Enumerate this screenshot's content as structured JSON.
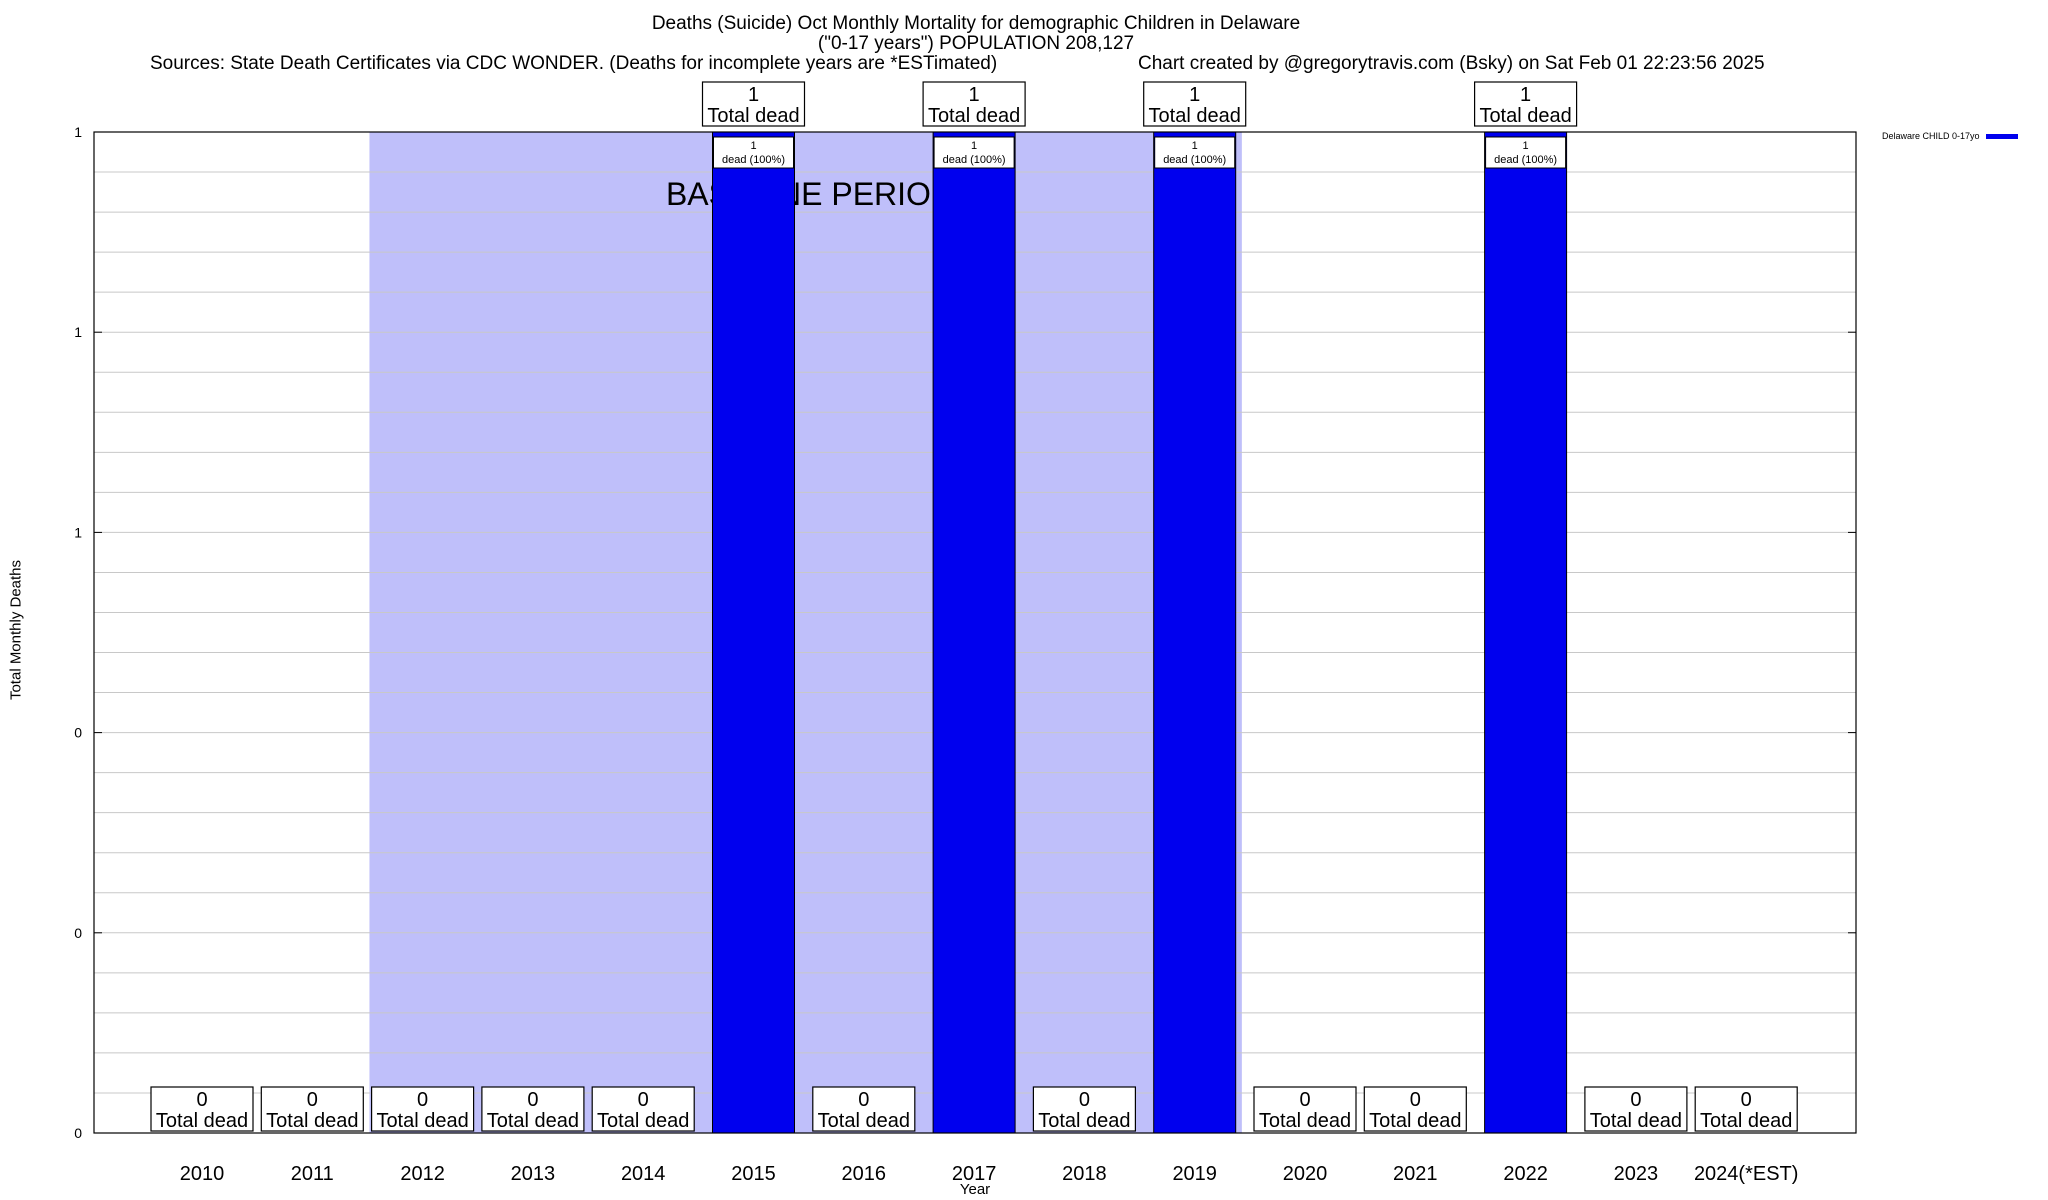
{
  "title": {
    "line1": "Deaths (Suicide) Oct Monthly Mortality for demographic Children in Delaware",
    "line2": "(\"0-17 years\") POPULATION 208,127",
    "line3": "Sources: State Death Certificates via CDC WONDER. (Deaths for incomplete years are *ESTimated)",
    "line4": "Chart created by @gregorytravis.com (Bsky) on Sat Feb 01 22:23:56 2025"
  },
  "chart_data": {
    "type": "bar",
    "xlabel": "Year",
    "ylabel": "Total Monthly Deaths",
    "ylim": [
      0,
      1
    ],
    "ytick_labels": [
      "0",
      "0",
      "0",
      "1",
      "1",
      "1"
    ],
    "categories": [
      "2010",
      "2011",
      "2012",
      "2013",
      "2014",
      "2015",
      "2016",
      "2017",
      "2018",
      "2019",
      "2020",
      "2021",
      "2022",
      "2023",
      "2024(*EST)"
    ],
    "series": [
      {
        "name": "Delaware CHILD 0-17yo",
        "color": "#0000ee",
        "values": [
          0,
          0,
          0,
          0,
          0,
          1,
          0,
          1,
          0,
          1,
          0,
          0,
          1,
          0,
          0
        ]
      }
    ],
    "total_label_suffix": "Total dead",
    "inner_labels": [
      "",
      "",
      "",
      "",
      "",
      "dead (100%)",
      "",
      "dead (100%)",
      "",
      "dead (100%)",
      "",
      "",
      "dead (100%)",
      "",
      ""
    ],
    "baseline": {
      "label": "BASELINE PERIOD",
      "start": "2012",
      "end": "2019",
      "color": "#bfbffa"
    },
    "grid": true,
    "legend_position": "top-right"
  }
}
